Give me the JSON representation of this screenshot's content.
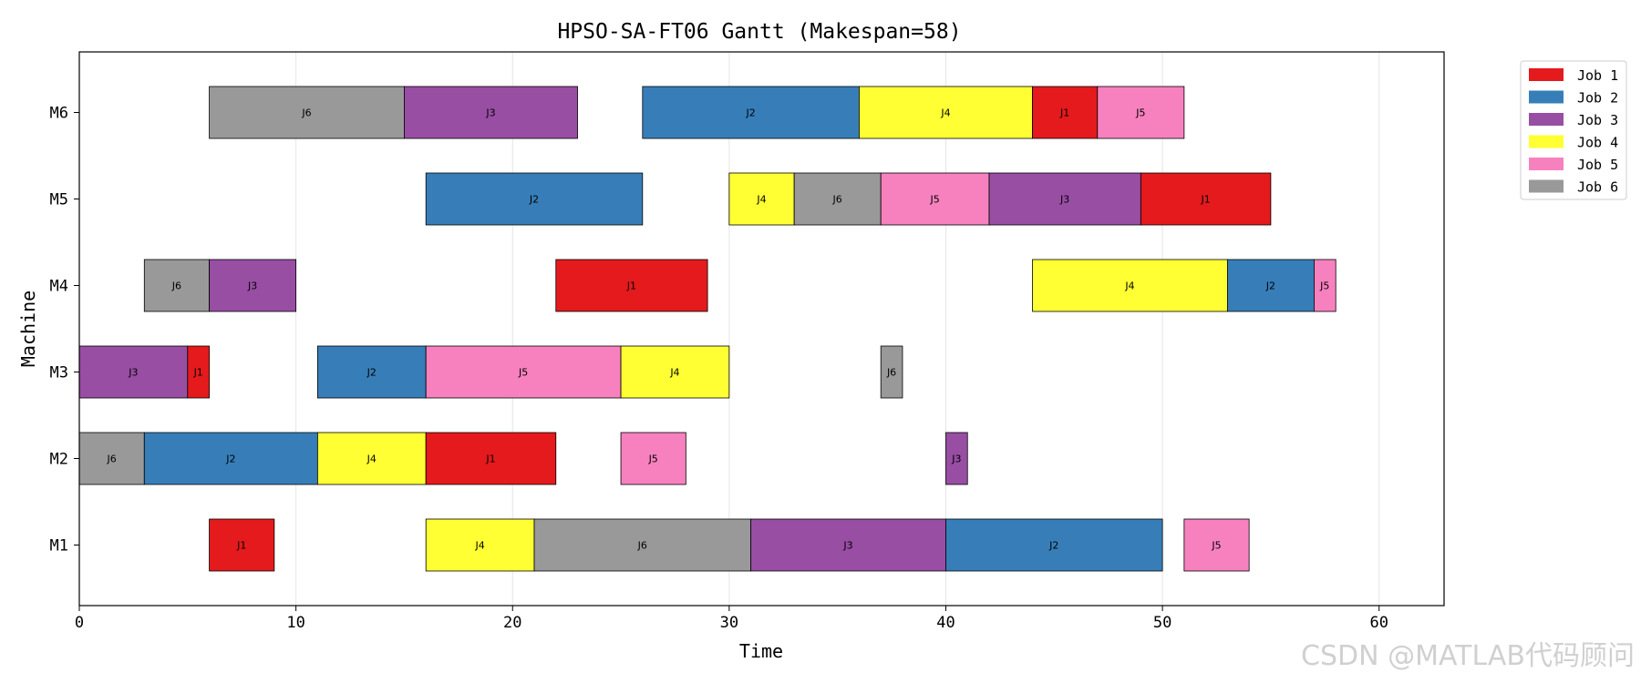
{
  "chart_data": {
    "type": "gantt",
    "title": "HPSO-SA-FT06 Gantt (Makespan=58)",
    "xlabel": "Time",
    "ylabel": "Machine",
    "xlim": [
      0,
      63
    ],
    "x_ticks": [
      0,
      10,
      20,
      30,
      40,
      50,
      60
    ],
    "grid": "vertical",
    "legend_position": "outside-top-right",
    "machines": [
      "M1",
      "M2",
      "M3",
      "M4",
      "M5",
      "M6"
    ],
    "jobs": [
      {
        "id": "J1",
        "legend": "Job 1",
        "color": "#e41a1c"
      },
      {
        "id": "J2",
        "legend": "Job 2",
        "color": "#377eb8"
      },
      {
        "id": "J3",
        "legend": "Job 3",
        "color": "#984ea3"
      },
      {
        "id": "J4",
        "legend": "Job 4",
        "color": "#ffff33"
      },
      {
        "id": "J5",
        "legend": "Job 5",
        "color": "#f781bf"
      },
      {
        "id": "J6",
        "legend": "Job 6",
        "color": "#999999"
      }
    ],
    "tasks": [
      {
        "machine": "M1",
        "job": "J1",
        "start": 6,
        "end": 9
      },
      {
        "machine": "M1",
        "job": "J4",
        "start": 16,
        "end": 21
      },
      {
        "machine": "M1",
        "job": "J6",
        "start": 21,
        "end": 31
      },
      {
        "machine": "M1",
        "job": "J3",
        "start": 31,
        "end": 40
      },
      {
        "machine": "M1",
        "job": "J2",
        "start": 40,
        "end": 50
      },
      {
        "machine": "M1",
        "job": "J5",
        "start": 51,
        "end": 54
      },
      {
        "machine": "M2",
        "job": "J6",
        "start": 0,
        "end": 3
      },
      {
        "machine": "M2",
        "job": "J2",
        "start": 3,
        "end": 11
      },
      {
        "machine": "M2",
        "job": "J4",
        "start": 11,
        "end": 16
      },
      {
        "machine": "M2",
        "job": "J1",
        "start": 16,
        "end": 22
      },
      {
        "machine": "M2",
        "job": "J5",
        "start": 25,
        "end": 28
      },
      {
        "machine": "M2",
        "job": "J3",
        "start": 40,
        "end": 41
      },
      {
        "machine": "M3",
        "job": "J3",
        "start": 0,
        "end": 5
      },
      {
        "machine": "M3",
        "job": "J1",
        "start": 5,
        "end": 6
      },
      {
        "machine": "M3",
        "job": "J2",
        "start": 11,
        "end": 16
      },
      {
        "machine": "M3",
        "job": "J5",
        "start": 16,
        "end": 25
      },
      {
        "machine": "M3",
        "job": "J4",
        "start": 25,
        "end": 30
      },
      {
        "machine": "M3",
        "job": "J6",
        "start": 37,
        "end": 38
      },
      {
        "machine": "M4",
        "job": "J6",
        "start": 3,
        "end": 6
      },
      {
        "machine": "M4",
        "job": "J3",
        "start": 6,
        "end": 10
      },
      {
        "machine": "M4",
        "job": "J1",
        "start": 22,
        "end": 29
      },
      {
        "machine": "M4",
        "job": "J4",
        "start": 44,
        "end": 53
      },
      {
        "machine": "M4",
        "job": "J2",
        "start": 53,
        "end": 57
      },
      {
        "machine": "M4",
        "job": "J5",
        "start": 57,
        "end": 58
      },
      {
        "machine": "M5",
        "job": "J2",
        "start": 16,
        "end": 26
      },
      {
        "machine": "M5",
        "job": "J4",
        "start": 30,
        "end": 33
      },
      {
        "machine": "M5",
        "job": "J6",
        "start": 33,
        "end": 37
      },
      {
        "machine": "M5",
        "job": "J5",
        "start": 37,
        "end": 42
      },
      {
        "machine": "M5",
        "job": "J3",
        "start": 42,
        "end": 49
      },
      {
        "machine": "M5",
        "job": "J1",
        "start": 49,
        "end": 55
      },
      {
        "machine": "M6",
        "job": "J6",
        "start": 6,
        "end": 15
      },
      {
        "machine": "M6",
        "job": "J3",
        "start": 15,
        "end": 23
      },
      {
        "machine": "M6",
        "job": "J2",
        "start": 26,
        "end": 36
      },
      {
        "machine": "M6",
        "job": "J4",
        "start": 36,
        "end": 44
      },
      {
        "machine": "M6",
        "job": "J1",
        "start": 44,
        "end": 47
      },
      {
        "machine": "M6",
        "job": "J5",
        "start": 47,
        "end": 51
      }
    ]
  },
  "watermark": "CSDN @MATLAB代码顾问"
}
